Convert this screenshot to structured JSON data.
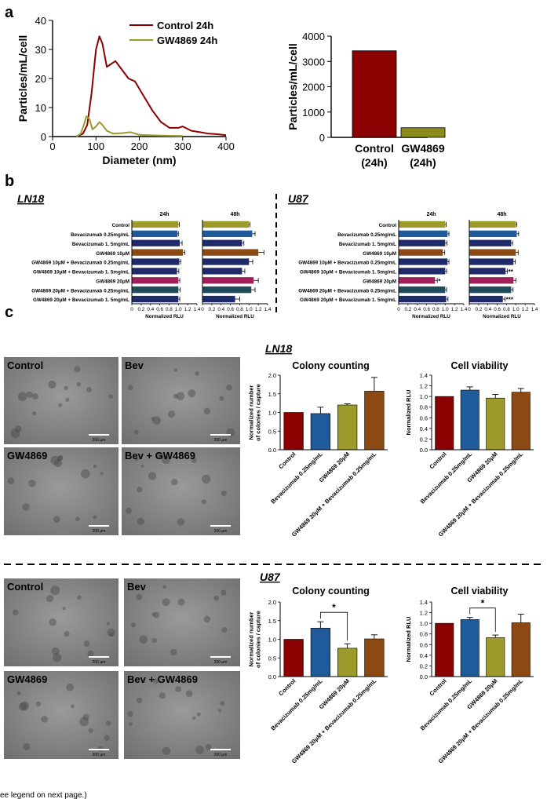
{
  "panels": {
    "a": "a",
    "b": "b",
    "c": "c"
  },
  "colors": {
    "control": "#8b0000",
    "gw": "#8c8c1a",
    "olive": "#9c9a2a",
    "blue": "#1f5a9a",
    "navy": "#1e2a6a",
    "brown": "#8b4a14",
    "magenta": "#a0205a",
    "teal": "#1e4a5a",
    "micro_bg": "#8e8e8e"
  },
  "chart_data": [
    {
      "id": "a-size-distribution",
      "type": "line",
      "xlabel": "Diameter (nm)",
      "ylabel": "Particles/mL/cell",
      "xlim": [
        0,
        400
      ],
      "ylim": [
        0,
        40
      ],
      "xticks": [
        0,
        100,
        200,
        300,
        400
      ],
      "yticks": [
        0,
        10,
        20,
        30,
        40
      ],
      "legend": "top-right",
      "series": [
        {
          "name": "Control 24h",
          "color": "#8b0000",
          "x": [
            55,
            70,
            80,
            90,
            100,
            108,
            115,
            125,
            135,
            145,
            160,
            175,
            190,
            210,
            230,
            250,
            270,
            290,
            300,
            320,
            340,
            360,
            380,
            400
          ],
          "y": [
            0,
            1,
            4,
            15,
            30,
            34.5,
            32,
            24,
            25,
            26,
            23,
            20,
            19,
            14,
            9,
            5,
            3,
            3,
            3.5,
            2,
            1.5,
            1,
            0.8,
            0.5
          ]
        },
        {
          "name": "GW4869 24h",
          "color": "#9c9a2a",
          "x": [
            55,
            65,
            72,
            78,
            85,
            92,
            100,
            108,
            115,
            125,
            140,
            160,
            180,
            200,
            230,
            260,
            300
          ],
          "y": [
            0,
            1,
            4,
            7,
            6,
            2.5,
            3.5,
            5,
            4,
            2,
            1,
            1.2,
            1.5,
            0.6,
            0.4,
            0.3,
            0.2
          ]
        }
      ]
    },
    {
      "id": "a-total-particles",
      "type": "bar",
      "ylabel": "Particles/mL/cell",
      "ylim": [
        0,
        4000
      ],
      "yticks": [
        0,
        1000,
        2000,
        3000,
        4000
      ],
      "categories": [
        "Control\n(24h)",
        "GW4869\n(24h)"
      ],
      "values": [
        3420,
        380
      ],
      "colors": [
        "#8b0000",
        "#8c8c1a"
      ]
    },
    {
      "id": "b-LN18-24h",
      "type": "bar",
      "orientation": "horizontal",
      "group_label": "LN18",
      "title": "24h",
      "xlabel": "Normalized RLU",
      "xticks": [
        "0",
        "0.2",
        "0.4",
        "0.6",
        "0.8",
        "1.0",
        "1.2",
        "1.4"
      ],
      "xlim": [
        0,
        1.4
      ],
      "categories": [
        "Control",
        "Bevacizumab 0.25mg/mL",
        "Bevacizumab 1. 5mg/mL",
        "GW4869 10μM",
        "GW4869 10μM + Bevacizumab 0.25mg/mL",
        "GW4869 10μM + Bevacizumab 1. 5mg/mL",
        "GW4869 20μM",
        "GW4869 20μM + Bevacizumab 0.25mg/mL",
        "GW4869 20μM + Bevacizumab 1. 5mg/mL"
      ],
      "values": [
        1.0,
        0.98,
        1.03,
        1.1,
        1.02,
        0.97,
        1.0,
        1.0,
        1.0
      ],
      "errors": [
        0.02,
        0.02,
        0.05,
        0.04,
        0.03,
        0.04,
        0.03,
        0.04,
        0.03
      ],
      "annotations": [
        "",
        "",
        "",
        "",
        "",
        "",
        "",
        "",
        ""
      ]
    },
    {
      "id": "b-LN18-48h",
      "type": "bar",
      "orientation": "horizontal",
      "group_label": "LN18",
      "title": "48h",
      "xlabel": "Normalized RLU",
      "xticks": [
        "0",
        "0.2",
        "0.4",
        "0.6",
        "0.8",
        "1.0",
        "1.2",
        "1.4"
      ],
      "xlim": [
        0,
        1.4
      ],
      "categories": [
        "Control",
        "Bevacizumab 0.25mg/mL",
        "Bevacizumab 1. 5mg/mL",
        "GW4869 10μM",
        "GW4869 10μM + Bevacizumab 0.25mg/mL",
        "GW4869 10μM + Bevacizumab 1. 5mg/mL",
        "GW4869 20μM",
        "GW4869 20μM + Bevacizumab 0.25mg/mL",
        "GW4869 20μM + Bevacizumab 1. 5mg/mL"
      ],
      "values": [
        1.0,
        1.07,
        0.85,
        1.2,
        1.0,
        0.85,
        1.1,
        1.05,
        0.7
      ],
      "errors": [
        0.02,
        0.06,
        0.04,
        0.12,
        0.08,
        0.06,
        0.1,
        0.08,
        0.1
      ],
      "annotations": [
        "",
        "",
        "",
        "",
        "",
        "",
        "",
        "",
        ""
      ]
    },
    {
      "id": "b-U87-24h",
      "type": "bar",
      "orientation": "horizontal",
      "group_label": "U87",
      "title": "24h",
      "xlabel": "Normalized RLU",
      "xticks": [
        "0",
        "0.2",
        "0.4",
        "0.6",
        "0.8",
        "1.0",
        "1.2",
        "1.4"
      ],
      "xlim": [
        0,
        1.4
      ],
      "categories": [
        "Control",
        "Bevacizumab 0.25mg/mL",
        "Bevacizumab 1. 5mg/mL",
        "GW4869 10μM",
        "GW4869 10μM + Bevacizumab 0.25mg/mL",
        "GW4869 10μM + Bevacizumab 1. 5mg/mL",
        "GW4869 20μM",
        "GW4869 20μM + Bevacizumab 0.25mg/mL",
        "GW4869 20μM + Bevacizumab 1. 5mg/mL"
      ],
      "values": [
        1.0,
        1.05,
        1.0,
        0.95,
        1.05,
        1.0,
        0.78,
        1.0,
        1.02
      ],
      "errors": [
        0.02,
        0.03,
        0.04,
        0.04,
        0.03,
        0.03,
        0.05,
        0.03,
        0.04
      ],
      "annotations": [
        "",
        "",
        "",
        "",
        "",
        "",
        "*",
        "",
        ""
      ]
    },
    {
      "id": "b-U87-48h",
      "type": "bar",
      "orientation": "horizontal",
      "group_label": "U87",
      "title": "48h",
      "xlabel": "Normalized RLU",
      "xticks": [
        "0",
        "0.2",
        "0.4",
        "0.6",
        "0.8",
        "1.0",
        "1.2",
        "1.4"
      ],
      "xlim": [
        0,
        1.4
      ],
      "categories": [
        "Control",
        "Bevacizumab 0.25mg/mL",
        "Bevacizumab 1. 5mg/mL",
        "GW4869 10μM",
        "GW4869 10μM + Bevacizumab 0.25mg/mL",
        "GW4869 10μM + Bevacizumab 1. 5mg/mL",
        "GW4869 20μM",
        "GW4869 20μM + Bevacizumab 0.25mg/mL",
        "GW4869 20μM + Bevacizumab 1. 5mg/mL"
      ],
      "values": [
        1.0,
        1.02,
        0.9,
        1.0,
        0.95,
        0.78,
        0.95,
        0.9,
        0.72
      ],
      "errors": [
        0.02,
        0.04,
        0.03,
        0.05,
        0.04,
        0.04,
        0.05,
        0.04,
        0.05
      ],
      "annotations": [
        "",
        "",
        "",
        "",
        "",
        "**",
        "",
        "",
        "***"
      ]
    },
    {
      "id": "c-LN18-colony",
      "type": "bar",
      "group_label": "LN18",
      "title": "Colony counting",
      "ylabel": "Normalized number\nof colonies / capture",
      "ylim": [
        0,
        2.0
      ],
      "yticks": [
        "0.0",
        "0.5",
        "1.0",
        "1.5",
        "2.0"
      ],
      "categories": [
        "Control",
        "Bevacizumab 0.25mg/mL",
        "GW4869 20μM",
        "GW4869 20μM + Bevacizumab 0.25mg/mL"
      ],
      "values": [
        1.0,
        0.97,
        1.2,
        1.57
      ],
      "errors": [
        0.0,
        0.17,
        0.03,
        0.37
      ]
    },
    {
      "id": "c-LN18-viability",
      "type": "bar",
      "group_label": "LN18",
      "title": "Cell viability",
      "ylabel": "Normalized RLU",
      "ylim": [
        0,
        1.4
      ],
      "yticks": [
        "0.0",
        "0.2",
        "0.4",
        "0.6",
        "0.8",
        "1.0",
        "1.2",
        "1.4"
      ],
      "categories": [
        "Control",
        "Bevacizumab 0.25mg/mL",
        "GW4869 20μM",
        "GW4869 20μM + Bevacizumab 0.25mg/mL"
      ],
      "values": [
        1.0,
        1.12,
        0.97,
        1.08
      ],
      "errors": [
        0.0,
        0.06,
        0.07,
        0.07
      ]
    },
    {
      "id": "c-U87-colony",
      "type": "bar",
      "group_label": "U87",
      "title": "Colony counting",
      "ylabel": "Normalized number\nof colonies / capture",
      "ylim": [
        0,
        2.0
      ],
      "yticks": [
        "0.0",
        "0.5",
        "1.0",
        "1.5",
        "2.0"
      ],
      "categories": [
        "Control",
        "Bevacizumab 0.25mg/mL",
        "GW4869 20μM",
        "GW4869 20μM + Bevacizumab 0.25mg/mL"
      ],
      "values": [
        1.0,
        1.3,
        0.76,
        1.01
      ],
      "errors": [
        0.0,
        0.17,
        0.12,
        0.11
      ],
      "significance": {
        "pair": [
          1,
          2
        ],
        "label": "*"
      }
    },
    {
      "id": "c-U87-viability",
      "type": "bar",
      "group_label": "U87",
      "title": "Cell viability",
      "ylabel": "Normalized RLU",
      "ylim": [
        0,
        1.4
      ],
      "yticks": [
        "0.0",
        "0.2",
        "0.4",
        "0.6",
        "0.8",
        "1.0",
        "1.2",
        "1.4"
      ],
      "categories": [
        "Control",
        "Bevacizumab 0.25mg/mL",
        "GW4869 20μM",
        "GW4869 20μM + Bevacizumab 0.25mg/mL"
      ],
      "values": [
        1.0,
        1.07,
        0.73,
        1.01
      ],
      "errors": [
        0.0,
        0.04,
        0.05,
        0.16
      ],
      "significance": {
        "pair": [
          1,
          2
        ],
        "label": "*"
      }
    }
  ],
  "micrographs": {
    "scale_bar": "200 μm",
    "LN18": [
      "Control",
      "Bev",
      "GW4869",
      "Bev + GW4869"
    ],
    "U87": [
      "Control",
      "Bev",
      "GW4869",
      "Bev + GW4869"
    ]
  },
  "footer": "(See legend on next page.)"
}
